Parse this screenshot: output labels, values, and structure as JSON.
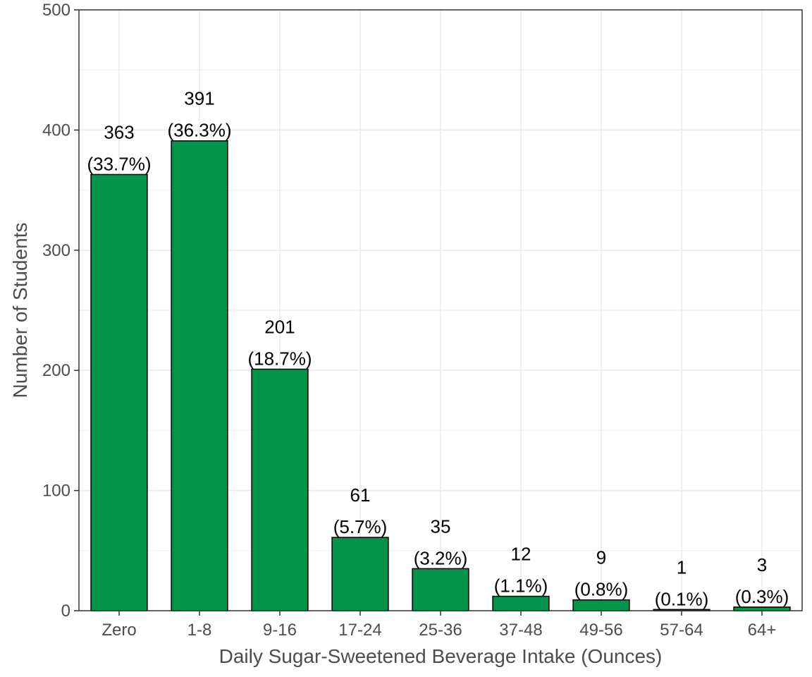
{
  "chart_data": {
    "type": "bar",
    "title": "",
    "xlabel": "Daily Sugar-Sweetened Beverage Intake (Ounces)",
    "ylabel": "Number of Students",
    "categories": [
      "Zero",
      "1-8",
      "9-16",
      "17-24",
      "25-36",
      "37-48",
      "49-56",
      "57-64",
      "64+"
    ],
    "values": [
      363,
      391,
      201,
      61,
      35,
      12,
      9,
      1,
      3
    ],
    "labels": [
      {
        "count": "363",
        "pct": "(33.7%)"
      },
      {
        "count": "391",
        "pct": "(36.3%)"
      },
      {
        "count": "201",
        "pct": "(18.7%)"
      },
      {
        "count": "61",
        "pct": "(5.7%)"
      },
      {
        "count": "35",
        "pct": "(3.2%)"
      },
      {
        "count": "12",
        "pct": "(1.1%)"
      },
      {
        "count": "9",
        "pct": "(0.8%)"
      },
      {
        "count": "1",
        "pct": "(0.1%)"
      },
      {
        "count": "3",
        "pct": "(0.3%)"
      }
    ],
    "ylim": [
      0,
      500
    ],
    "yticks": [
      0,
      100,
      200,
      300,
      400,
      500
    ],
    "grid": true,
    "legend": "none",
    "bar_color": "#03934a",
    "bar_stroke": "#000000",
    "grid_color": "#ebebeb",
    "panel_border": "#333333"
  }
}
